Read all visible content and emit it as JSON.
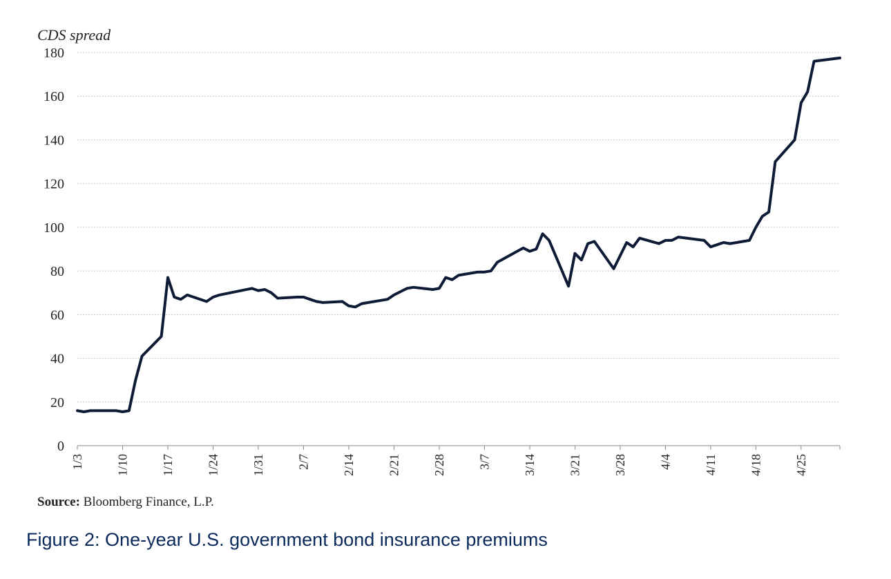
{
  "chart_data": {
    "type": "line",
    "ylabel": "CDS spread",
    "ylim": [
      0,
      180
    ],
    "yticks": [
      0,
      20,
      40,
      60,
      80,
      100,
      120,
      140,
      160,
      180
    ],
    "xticks": [
      "1/3",
      "1/10",
      "1/17",
      "1/24",
      "1/31",
      "2/7",
      "2/14",
      "2/21",
      "2/28",
      "3/7",
      "3/14",
      "3/21",
      "3/28",
      "4/4",
      "4/11",
      "4/18",
      "4/25"
    ],
    "grid": true,
    "line_color": "#0d1b36",
    "series": [
      {
        "x": [
          "1/3",
          "1/4",
          "1/5",
          "1/6",
          "1/9",
          "1/10",
          "1/11",
          "1/12",
          "1/13",
          "1/16",
          "1/17",
          "1/18",
          "1/19",
          "1/20",
          "1/23",
          "1/24",
          "1/25",
          "1/30",
          "1/31",
          "2/1",
          "2/2",
          "2/3",
          "2/6",
          "2/7",
          "2/8",
          "2/9",
          "2/10",
          "2/13",
          "2/14",
          "2/15",
          "2/16",
          "2/17",
          "2/20",
          "2/21",
          "2/22",
          "2/23",
          "2/24",
          "2/27",
          "2/28",
          "3/1",
          "3/2",
          "3/3",
          "3/6",
          "3/7",
          "3/8",
          "3/9",
          "3/13",
          "3/14",
          "3/15",
          "3/16",
          "3/17",
          "3/20",
          "3/21",
          "3/22",
          "3/23",
          "3/24",
          "3/27",
          "3/28",
          "3/29",
          "3/30",
          "3/31",
          "4/3",
          "4/4",
          "4/5",
          "4/6",
          "4/10",
          "4/11",
          "4/12",
          "4/13",
          "4/14",
          "4/17",
          "4/18",
          "4/19",
          "4/20",
          "4/21",
          "4/24",
          "4/25",
          "4/26",
          "4/27",
          "5/1"
        ],
        "values": [
          16,
          15.5,
          16,
          16,
          16,
          15.5,
          16,
          30,
          41,
          50,
          77,
          68,
          67,
          69,
          66,
          68,
          69,
          72,
          71,
          71.5,
          70,
          67.5,
          68,
          68,
          67,
          66,
          65.5,
          66,
          64,
          63.5,
          65,
          65.5,
          67,
          69,
          70.5,
          72,
          72.5,
          71.5,
          72,
          77,
          76,
          78,
          79.5,
          79.5,
          80,
          84,
          90.5,
          89,
          90,
          97,
          94,
          73,
          88,
          85,
          92.5,
          93.5,
          81,
          87,
          93,
          91,
          95,
          92.5,
          94,
          94,
          95.5,
          94,
          91,
          92,
          93,
          92.5,
          94,
          100,
          105,
          107,
          130,
          140,
          157,
          162,
          176,
          177.5
        ]
      }
    ]
  },
  "source": {
    "label": "Source:",
    "text": " Bloomberg Finance, L.P."
  },
  "caption": "Figure 2: One-year U.S. government bond insurance premiums"
}
